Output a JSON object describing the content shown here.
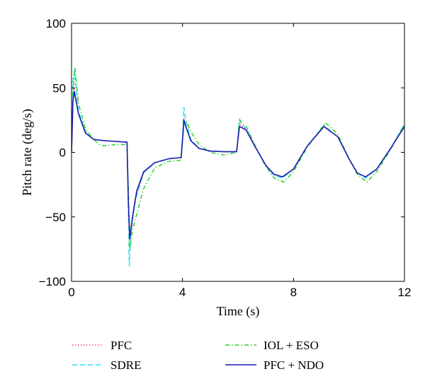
{
  "chart_data": {
    "type": "line",
    "xlabel": "Time (s)",
    "ylabel": "Pitch rate (deg/s)",
    "xlim": [
      0,
      12
    ],
    "ylim": [
      -100,
      100
    ],
    "xticks": [
      0,
      4,
      8,
      12
    ],
    "yticks": [
      -100,
      -50,
      0,
      50,
      100
    ],
    "grid": false,
    "legend_position": "bottom",
    "series": [
      {
        "name": "PFC",
        "color": "#ff3fa0",
        "dash": "1.5,2.5",
        "x": [
          0,
          0.05,
          0.1,
          0.25,
          0.5,
          0.8,
          1.2,
          1.6,
          1.9,
          2.0,
          2.05,
          2.08,
          2.15,
          2.3,
          2.6,
          3.0,
          3.5,
          3.95,
          4.0,
          4.05,
          4.12,
          4.3,
          4.6,
          5.0,
          5.5,
          5.95,
          6.0,
          6.05,
          6.15,
          6.3,
          6.6,
          7.0,
          7.3,
          7.6,
          8.0,
          8.5,
          9.1,
          9.6,
          10.0,
          10.3,
          10.6,
          11.0,
          11.5,
          12.0
        ],
        "y": [
          0,
          42,
          50,
          30,
          15,
          10,
          9,
          8.5,
          8,
          8,
          -40,
          -69,
          -55,
          -35,
          -16,
          -8,
          -5,
          -4,
          10,
          26,
          20,
          9,
          3,
          1,
          0.5,
          0.5,
          10,
          22,
          20,
          18,
          5,
          -10,
          -17,
          -19,
          -13,
          5,
          20,
          12,
          -5,
          -16,
          -19,
          -13,
          3,
          21
        ]
      },
      {
        "name": "SDRE",
        "color": "#33e0ee",
        "dash": "7,4",
        "x": [
          0,
          0.05,
          0.1,
          0.25,
          0.5,
          0.8,
          1.2,
          1.6,
          1.9,
          2.0,
          2.05,
          2.08,
          2.15,
          2.3,
          2.6,
          3.0,
          3.5,
          3.95,
          4.0,
          4.05,
          4.12,
          4.3,
          4.6,
          5.0,
          5.5,
          5.95,
          6.0,
          6.05,
          6.15,
          6.3,
          6.6,
          7.0,
          7.3,
          7.6,
          8.0,
          8.5,
          9.1,
          9.6,
          10.0,
          10.3,
          10.6,
          11.0,
          11.5,
          12.0
        ],
        "y": [
          0,
          55,
          63,
          32,
          16,
          10,
          9,
          8.5,
          8,
          8,
          -50,
          -88,
          -60,
          -37,
          -16,
          -8,
          -5,
          -4,
          12,
          35,
          24,
          10,
          3,
          1,
          0.5,
          0.5,
          12,
          26,
          22,
          18,
          5,
          -10,
          -18,
          -20,
          -13,
          5,
          21,
          12,
          -5,
          -16,
          -20,
          -13,
          3,
          22
        ]
      },
      {
        "name": "IOL + ESO",
        "color": "#2ed12e",
        "dash": "6,3,1.5,3",
        "x": [
          0,
          0.05,
          0.12,
          0.25,
          0.5,
          0.8,
          1.0,
          1.2,
          1.6,
          1.9,
          2.0,
          2.05,
          2.1,
          2.2,
          2.35,
          2.6,
          3.0,
          3.5,
          3.95,
          4.0,
          4.05,
          4.15,
          4.3,
          4.6,
          5.0,
          5.5,
          5.95,
          6.0,
          6.05,
          6.15,
          6.3,
          6.6,
          7.0,
          7.3,
          7.65,
          8.0,
          8.5,
          9.15,
          9.6,
          10.0,
          10.3,
          10.65,
          11.0,
          11.5,
          12.0
        ],
        "y": [
          0,
          45,
          66,
          38,
          18,
          10,
          6,
          5,
          6,
          6,
          6,
          -30,
          -75,
          -60,
          -48,
          -28,
          -12,
          -7,
          -6,
          8,
          22,
          24,
          16,
          6,
          0,
          -2,
          0,
          12,
          25,
          22,
          20,
          6,
          -11,
          -20,
          -23,
          -15,
          4,
          23,
          14,
          -5,
          -17,
          -23,
          -15,
          2,
          22
        ]
      },
      {
        "name": "PFC + NDO",
        "color": "#1c1cb0",
        "dash": "",
        "x": [
          0,
          0.05,
          0.1,
          0.25,
          0.5,
          0.8,
          1.2,
          1.6,
          1.9,
          2.0,
          2.05,
          2.1,
          2.2,
          2.35,
          2.6,
          3.0,
          3.5,
          3.95,
          4.0,
          4.05,
          4.12,
          4.3,
          4.6,
          5.0,
          5.5,
          5.95,
          6.0,
          6.05,
          6.15,
          6.3,
          6.6,
          7.0,
          7.3,
          7.6,
          8.0,
          8.5,
          9.1,
          9.6,
          10.0,
          10.3,
          10.6,
          11.0,
          11.5,
          12.0
        ],
        "y": [
          0,
          40,
          47,
          30,
          15,
          10,
          9,
          8.5,
          8,
          8,
          -40,
          -67,
          -50,
          -30,
          -15,
          -8,
          -5,
          -4,
          10,
          25,
          20,
          9,
          3,
          1,
          0.5,
          0.5,
          10,
          20,
          19,
          17,
          5,
          -10,
          -17,
          -19,
          -13,
          5,
          20,
          12,
          -5,
          -16,
          -19,
          -13,
          3,
          20
        ]
      }
    ]
  }
}
